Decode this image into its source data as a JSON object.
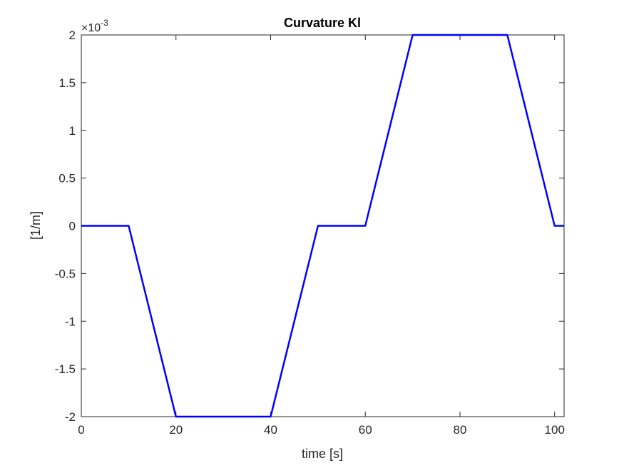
{
  "chart_data": {
    "type": "line",
    "title": "Curvature Kl",
    "xlabel": "time [s]",
    "ylabel": "[1/m]",
    "exponent_label": {
      "base": "×10",
      "power": "-3"
    },
    "xlim": [
      0,
      102
    ],
    "ylim": [
      -0.002,
      0.002
    ],
    "grid": false,
    "xticks": [
      0,
      20,
      40,
      60,
      80,
      100
    ],
    "xtick_labels": [
      "0",
      "20",
      "40",
      "60",
      "80",
      "100"
    ],
    "yticks": [
      -0.002,
      -0.0015,
      -0.001,
      -0.0005,
      0,
      0.0005,
      0.001,
      0.0015,
      0.002
    ],
    "ytick_labels": [
      "-2",
      "-1.5",
      "-1",
      "-0.5",
      "0",
      "0.5",
      "1",
      "1.5",
      "2"
    ],
    "series": [
      {
        "color": "#0000ff",
        "x": [
          0,
          10,
          20,
          40,
          50,
          60,
          70,
          90,
          100,
          102
        ],
        "y": [
          0,
          0,
          -0.002,
          -0.002,
          0,
          0,
          0.002,
          0.002,
          0,
          0
        ]
      }
    ]
  }
}
